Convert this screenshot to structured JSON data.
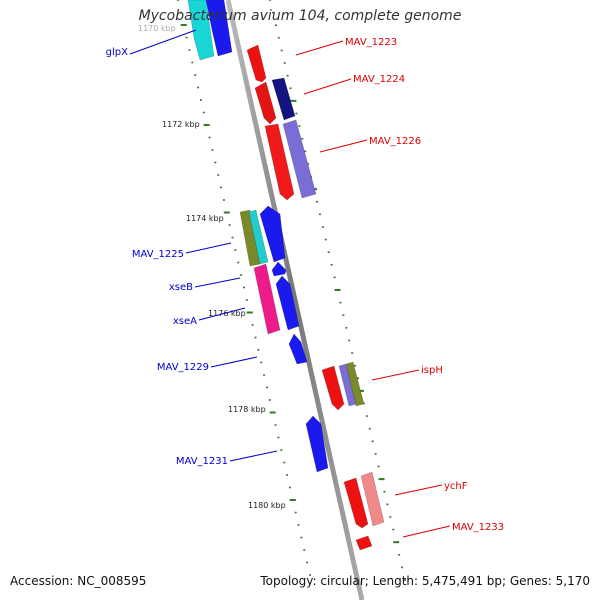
{
  "title": "Mycobacterium avium 104, complete genome",
  "footer": {
    "accession": "Accession: NC_008595",
    "summary": "Topology: circular; Length: 5,475,491 bp; Genes: 5,170"
  },
  "colors": {
    "backbone": "#888888",
    "tick": "#2e7d1f",
    "label_forward": "#0000cc",
    "label_reverse": "#dd0000",
    "ruler_text": "#222222"
  },
  "ruler_labels": [
    {
      "text": "1170 kbp",
      "faded": true
    },
    {
      "text": "1172 kbp"
    },
    {
      "text": "1174 kbp"
    },
    {
      "text": "1176 kbp"
    },
    {
      "text": "1178 kbp"
    },
    {
      "text": "1180 kbp"
    }
  ],
  "gene_labels": [
    {
      "text": "glpX",
      "strand": "forward"
    },
    {
      "text": "MAV_1223",
      "strand": "reverse"
    },
    {
      "text": "MAV_1224",
      "strand": "reverse"
    },
    {
      "text": "MAV_1226",
      "strand": "reverse"
    },
    {
      "text": "MAV_1225",
      "strand": "forward"
    },
    {
      "text": "xseB",
      "strand": "forward"
    },
    {
      "text": "xseA",
      "strand": "forward"
    },
    {
      "text": "MAV_1229",
      "strand": "forward"
    },
    {
      "text": "ispH",
      "strand": "reverse"
    },
    {
      "text": "MAV_1231",
      "strand": "forward"
    },
    {
      "text": "ychF",
      "strand": "reverse"
    },
    {
      "text": "MAV_1233",
      "strand": "reverse"
    }
  ],
  "features": [
    {
      "name": "glpX-cyan",
      "color": "#19d6d6"
    },
    {
      "name": "glpX-blue",
      "color": "#1a1aee"
    },
    {
      "name": "mav1223",
      "color": "#ee1111"
    },
    {
      "name": "mav1224-red",
      "color": "#e51414"
    },
    {
      "name": "mav1224-navy",
      "color": "#141480"
    },
    {
      "name": "mav1226-red",
      "color": "#f01a1a"
    },
    {
      "name": "mav1226-purple",
      "color": "#7a6ed6"
    },
    {
      "name": "mav1225-olive",
      "color": "#7a8a2a"
    },
    {
      "name": "mav1225-cyan",
      "color": "#22cccc"
    },
    {
      "name": "mav1225-blue",
      "color": "#1a1aee"
    },
    {
      "name": "xseB-pink",
      "color": "#ee1a8a"
    },
    {
      "name": "xseB-blue",
      "color": "#1a1aee"
    },
    {
      "name": "xseA-blue",
      "color": "#1a1aee"
    },
    {
      "name": "mav1229-blue",
      "color": "#1a1aee"
    },
    {
      "name": "ispH-red",
      "color": "#ee1111"
    },
    {
      "name": "ispH-purple",
      "color": "#7a6ed6"
    },
    {
      "name": "ispH-olive",
      "color": "#7a8a2a"
    },
    {
      "name": "mav1231-blue",
      "color": "#1a1aee"
    },
    {
      "name": "ychF-red",
      "color": "#ee1111"
    },
    {
      "name": "ychF-pink",
      "color": "#f08a8a"
    },
    {
      "name": "mav1233-red",
      "color": "#ee1111"
    }
  ]
}
